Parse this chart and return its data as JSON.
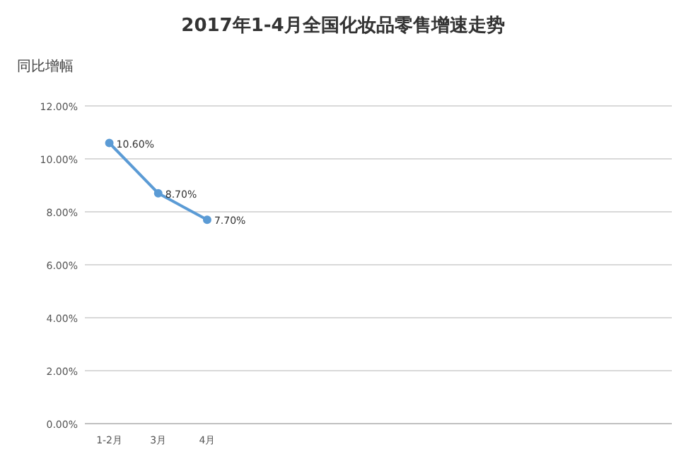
{
  "chart_data": {
    "type": "line",
    "title": "2017年1-4月全国化妆品零售增速走势",
    "ylabel": "同比增幅",
    "categories": [
      "1-2月",
      "3月",
      "4月",
      null,
      null,
      null,
      null,
      null,
      null,
      null,
      null,
      null
    ],
    "series": [
      {
        "color": "#5b9bd5",
        "values": [
          10.6,
          8.7,
          7.7,
          null,
          null,
          null,
          null,
          null,
          null,
          null,
          null,
          null
        ],
        "value_labels": [
          "10.60%",
          "8.70%",
          "7.70%",
          null,
          null,
          null,
          null,
          null,
          null,
          null,
          null,
          null
        ]
      }
    ],
    "ylim": [
      0,
      12
    ],
    "yticks": [
      {
        "value": 0,
        "label": "0.00%"
      },
      {
        "value": 2,
        "label": "2.00%"
      },
      {
        "value": 4,
        "label": "4.00%"
      },
      {
        "value": 6,
        "label": "6.00%"
      },
      {
        "value": 8,
        "label": "8.00%"
      },
      {
        "value": 10,
        "label": "10.00%"
      },
      {
        "value": 12,
        "label": "12.00%"
      }
    ],
    "grid": "y",
    "marker": "circle",
    "line_style": "solid"
  }
}
